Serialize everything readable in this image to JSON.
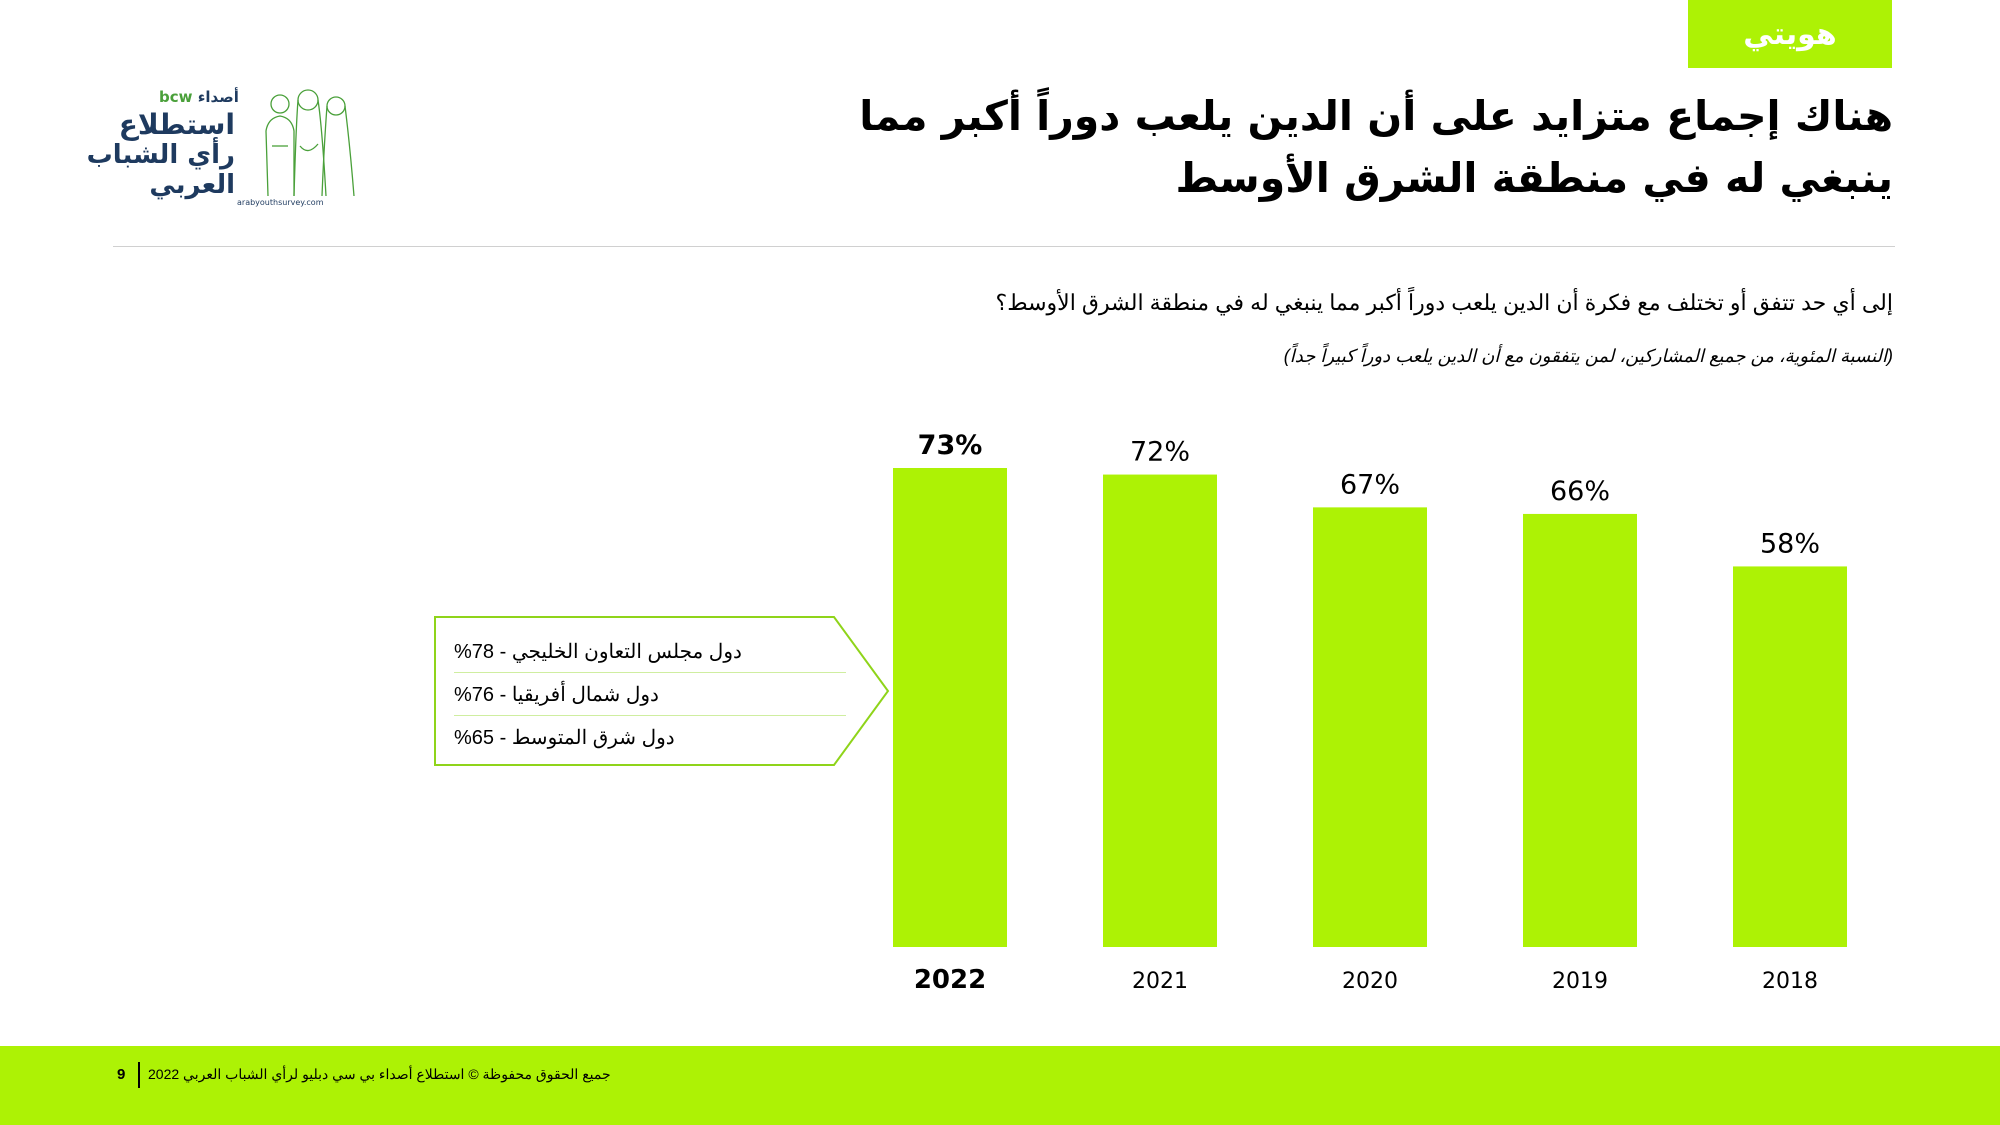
{
  "colors": {
    "accent": "#adf205",
    "text": "#000000"
  },
  "section_tag": "هويتي",
  "logo": {
    "brand_bcw": "bcw",
    "brand_asdaa": "أصداء",
    "line1": "استطلاع",
    "line2": "رأي الشباب",
    "line3": "العربي",
    "url": "arabyouthsurvey.com",
    "illustration_icon": "people-line-art-icon"
  },
  "title": "هناك إجماع متزايد على أن الدين يلعب دوراً أكبر مما ينبغي له في منطقة الشرق الأوسط",
  "question": "إلى أي حد تتفق أو تختلف مع فكرة أن الدين يلعب دوراً أكبر مما ينبغي له في منطقة الشرق الأوسط؟",
  "note": "(النسبة المئوية، من جميع المشاركين، لمن يتفقون مع أن الدين يلعب دوراً كبيراً جداً)",
  "chart_data": {
    "type": "bar",
    "categories": [
      "2022",
      "2021",
      "2020",
      "2019",
      "2018"
    ],
    "values": [
      73,
      72,
      67,
      66,
      58
    ],
    "labels": [
      "73%",
      "72%",
      "67%",
      "66%",
      "58%"
    ],
    "highlight": "2022",
    "ylim": [
      0,
      73
    ],
    "grid": false,
    "title": "",
    "xlabel": "",
    "ylabel": "",
    "color": "#adf205"
  },
  "callout": {
    "rows": [
      "دول مجلس التعاون الخليجي - 78%",
      "دول شمال أفريقيا  - 76%",
      "دول شرق المتوسط  - 65%"
    ]
  },
  "footer": {
    "page_number": "9",
    "copyright": "جميع الحقوق محفوظة © استطلاع أصداء بي سي دبليو لرأي الشباب العربي 2022"
  }
}
